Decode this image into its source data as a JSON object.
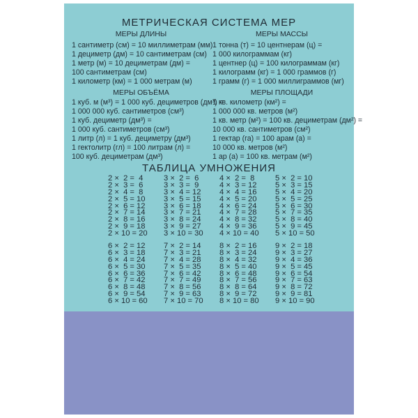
{
  "title": "МЕТРИЧЕСКАЯ СИСТЕМА МЕР",
  "length": {
    "heading": "МЕРЫ ДЛИНЫ",
    "lines": [
      "1 сантиметр (см) = 10 миллиметрам (мм)",
      "1 дециметр (дм) = 10 сантиметрам (см)",
      "1 метр (м) = 10 дециметрам (дм) =",
      "100 сантиметрам (см)",
      "1 километр (км) = 1 000 метрам (м)"
    ]
  },
  "mass": {
    "heading": "МЕРЫ МАССЫ",
    "lines": [
      "1 тонна (т) = 10 центнерам (ц) =",
      "1 000 килограммам (кг)",
      "1 центнер (ц) = 100 килограммам (кг)",
      "1 килограмм (кг) = 1 000 граммов (г)",
      "1 грамм (г) = 1 000 миллиграммов (мг)"
    ]
  },
  "volume": {
    "heading": "МЕРЫ ОБЪЁМА",
    "lines": [
      "1 куб. м (м³) = 1 000 куб. дециметров (дм³) =",
      "1 000 000 куб. сантиметров (см³)",
      "1 куб. дециметр (дм³) =",
      "1 000 куб. сантиметров (см³)",
      "1 литр (л) = 1 куб. дециметру (дм³)",
      "1 гектолитр (гл) = 100 литрам (л) =",
      "100 куб. дециметрам (дм³)"
    ]
  },
  "area": {
    "heading": "МЕРЫ ПЛОЩАДИ",
    "lines": [
      "1 кв. километр (км²) =",
      "1 000 000 кв. метров (м²)",
      "1 кв. метр (м²) = 100 кв. дециметрам (дм²) =",
      "10 000 кв. сантиметров (см²)",
      "1 гектар (га) = 100 арам (а) =",
      "10 000 кв. метров (м²)",
      "1 ар (а) = 100 кв. метрам (м²)"
    ]
  },
  "multiplication": {
    "heading": "ТАБЛИЦА УМНОЖЕНИЯ",
    "tables": [
      2,
      3,
      4,
      5,
      6,
      7,
      8,
      9
    ],
    "multipliers": [
      2,
      3,
      4,
      5,
      6,
      7,
      8,
      9,
      10
    ]
  },
  "colors": {
    "top_panel": "#8dcdd3",
    "bottom_panel": "#8992c6",
    "text": "#1e2a33"
  }
}
